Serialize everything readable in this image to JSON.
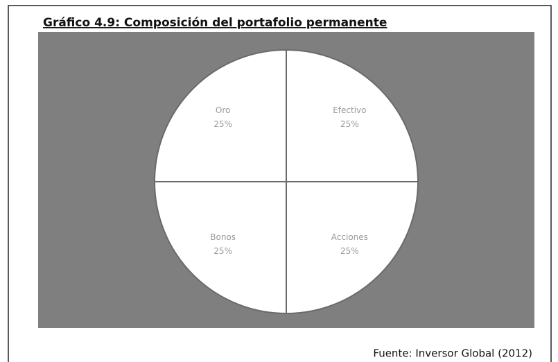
{
  "chart_data": {
    "type": "pie",
    "title": "Gráfico 4.9: Composición del portafolio permanente",
    "categories": [
      "Efectivo",
      "Acciones",
      "Bonos",
      "Oro"
    ],
    "values": [
      25,
      25,
      25,
      25
    ],
    "value_labels": [
      "25%",
      "25%",
      "25%",
      "25%"
    ],
    "color": "#ffffff",
    "background": "#7f7f7f",
    "source": "Fuente: Inversor Global (2012)"
  }
}
